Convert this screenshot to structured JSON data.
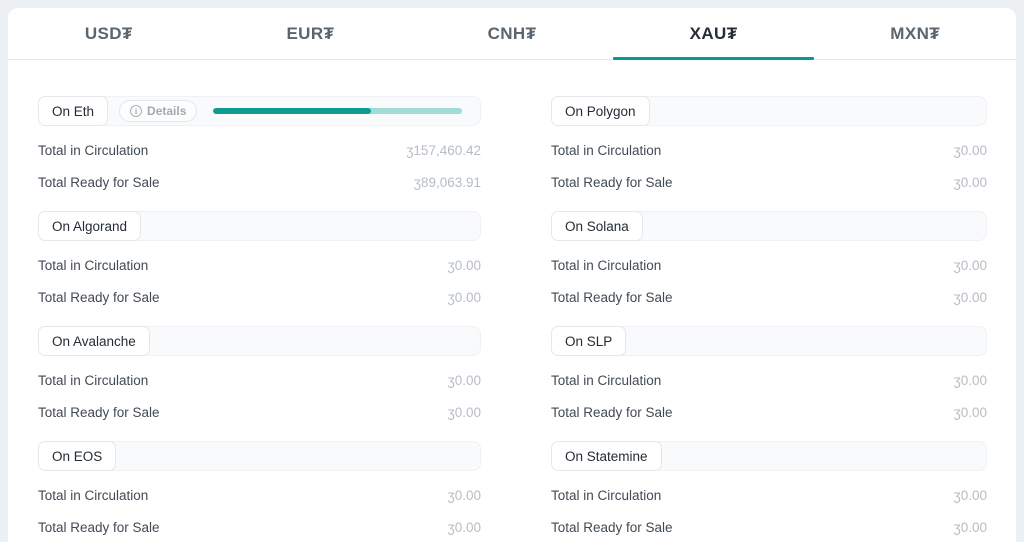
{
  "tabs": {
    "accent_color": "#019c92",
    "items": [
      {
        "label": "USD₮",
        "active": false
      },
      {
        "label": "EUR₮",
        "active": false
      },
      {
        "label": "CNH₮",
        "active": false
      },
      {
        "label": "XAU₮",
        "active": true
      },
      {
        "label": "MXN₮",
        "active": false
      }
    ]
  },
  "labels": {
    "total_in_circulation": "Total in Circulation",
    "total_ready_for_sale": "Total Ready for Sale",
    "details": "Details"
  },
  "currency_symbol": "ʒ",
  "progress_bar": {
    "percent": 63.5,
    "fill_color": "#0f9b93",
    "track_color": "#a2dcd7"
  },
  "cards": [
    {
      "title": "On Eth",
      "total_in_circulation": "157,460.42",
      "total_ready_for_sale": "89,063.91"
    },
    {
      "title": "On Polygon",
      "total_in_circulation": "0.00",
      "total_ready_for_sale": "0.00"
    },
    {
      "title": "On Algorand",
      "total_in_circulation": "0.00",
      "total_ready_for_sale": "0.00"
    },
    {
      "title": "On Solana",
      "total_in_circulation": "0.00",
      "total_ready_for_sale": "0.00"
    },
    {
      "title": "On Avalanche",
      "total_in_circulation": "0.00",
      "total_ready_for_sale": "0.00"
    },
    {
      "title": "On SLP",
      "total_in_circulation": "0.00",
      "total_ready_for_sale": "0.00"
    },
    {
      "title": "On EOS",
      "total_in_circulation": "0.00",
      "total_ready_for_sale": "0.00"
    },
    {
      "title": "On Statemine",
      "total_in_circulation": "0.00",
      "total_ready_for_sale": "0.00"
    }
  ]
}
